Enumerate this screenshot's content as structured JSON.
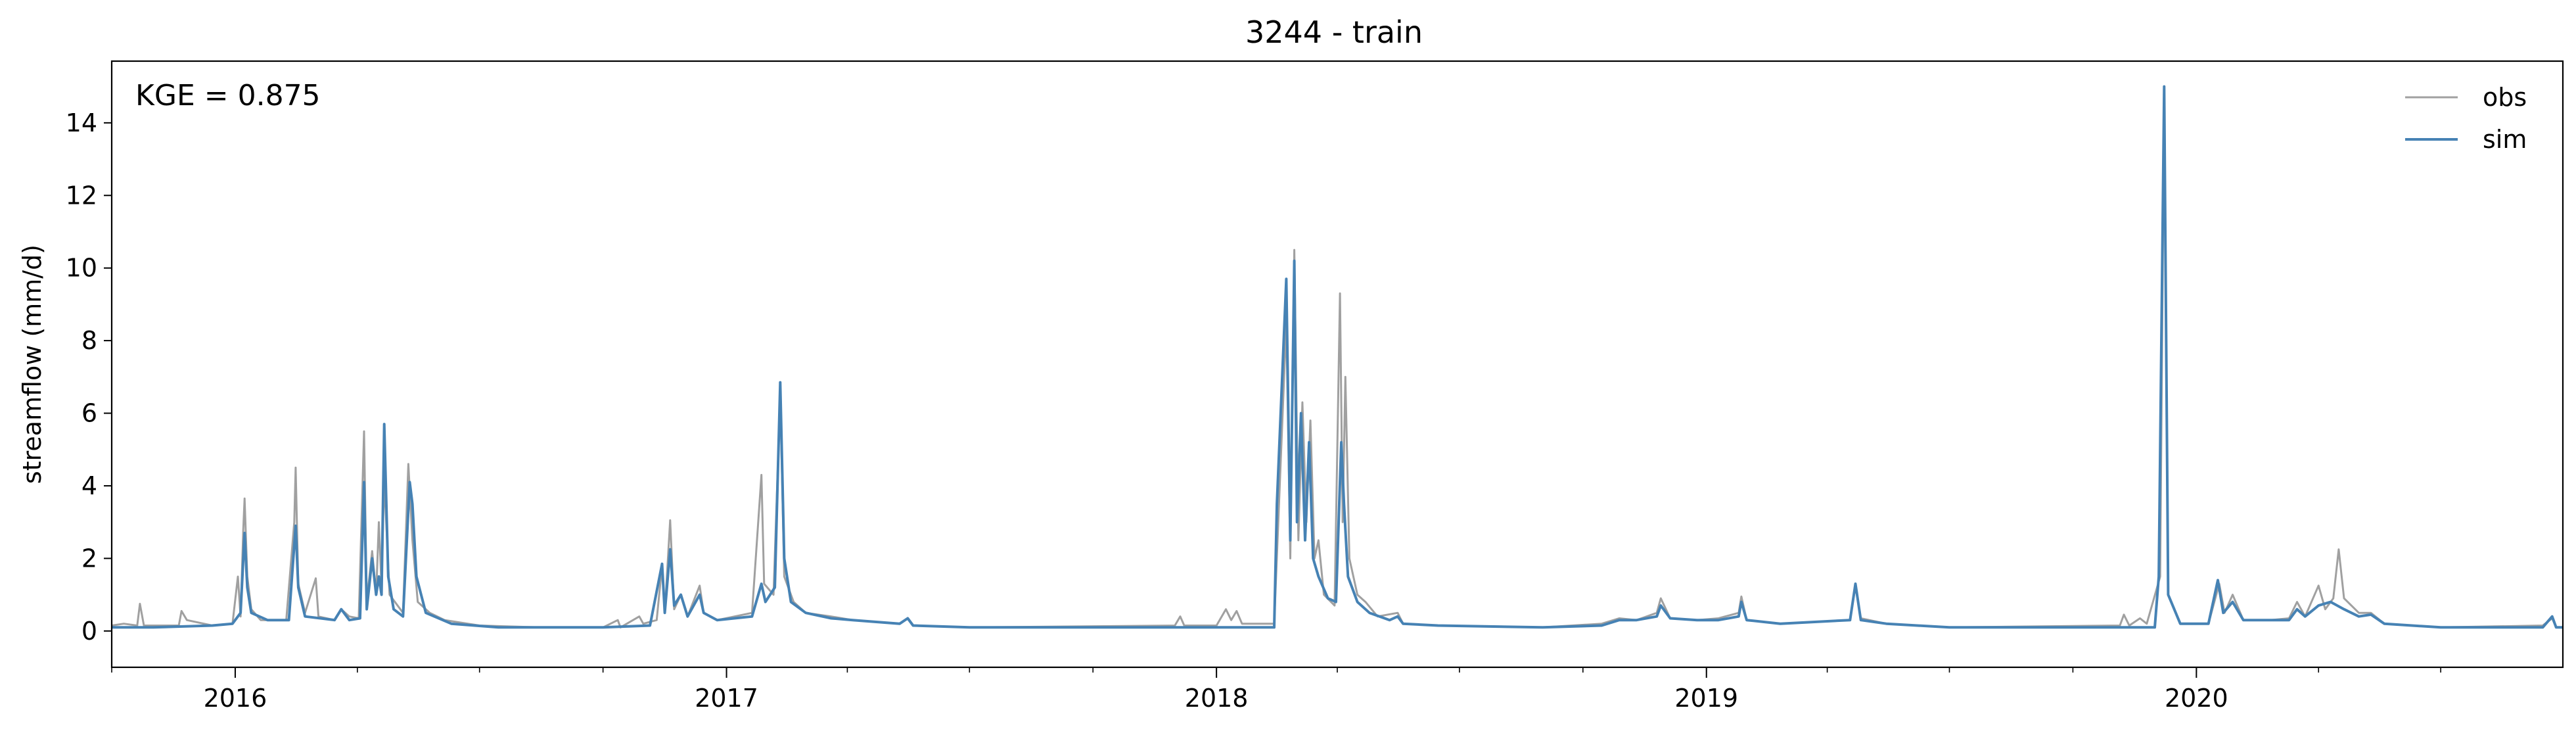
{
  "chart_data": {
    "type": "line",
    "title": "3244 - train",
    "xlabel": "",
    "ylabel": "streamflow (mm/d)",
    "annotation": "KGE = 0.875",
    "xlim": [
      "2015-10-01",
      "2020-09-30"
    ],
    "ylim": [
      -1,
      15.7
    ],
    "yticks": [
      0,
      2,
      4,
      6,
      8,
      10,
      12,
      14
    ],
    "xticks": [
      "2016-01-01",
      "2017-01-01",
      "2018-01-01",
      "2019-01-01",
      "2020-01-01"
    ],
    "xticklabels": [
      "2016",
      "2017",
      "2018",
      "2019",
      "2020"
    ],
    "grid": false,
    "legend_position": "upper-right",
    "series": [
      {
        "name": "obs",
        "color": "#a0a0a0",
        "points": [
          [
            "2015-10-01",
            0.15
          ],
          [
            "2015-10-10",
            0.2
          ],
          [
            "2015-10-20",
            0.15
          ],
          [
            "2015-10-22",
            0.75
          ],
          [
            "2015-10-25",
            0.15
          ],
          [
            "2015-11-20",
            0.15
          ],
          [
            "2015-11-22",
            0.55
          ],
          [
            "2015-11-26",
            0.3
          ],
          [
            "2015-12-15",
            0.15
          ],
          [
            "2015-12-30",
            0.2
          ],
          [
            "2016-01-03",
            1.5
          ],
          [
            "2016-01-05",
            0.4
          ],
          [
            "2016-01-07",
            2.8
          ],
          [
            "2016-01-08",
            3.65
          ],
          [
            "2016-01-10",
            1.5
          ],
          [
            "2016-01-13",
            0.6
          ],
          [
            "2016-01-20",
            0.3
          ],
          [
            "2016-02-08",
            0.3
          ],
          [
            "2016-02-14",
            3.0
          ],
          [
            "2016-02-15",
            4.5
          ],
          [
            "2016-02-17",
            1.3
          ],
          [
            "2016-02-22",
            0.5
          ],
          [
            "2016-03-01",
            1.45
          ],
          [
            "2016-03-03",
            0.4
          ],
          [
            "2016-03-15",
            0.3
          ],
          [
            "2016-03-20",
            0.6
          ],
          [
            "2016-03-26",
            0.4
          ],
          [
            "2016-04-02",
            0.35
          ],
          [
            "2016-04-06",
            5.5
          ],
          [
            "2016-04-08",
            0.8
          ],
          [
            "2016-04-12",
            2.2
          ],
          [
            "2016-04-15",
            1.0
          ],
          [
            "2016-04-17",
            3.0
          ],
          [
            "2016-04-19",
            1.2
          ],
          [
            "2016-04-21",
            4.2
          ],
          [
            "2016-04-25",
            1.0
          ],
          [
            "2016-05-05",
            0.5
          ],
          [
            "2016-05-09",
            4.6
          ],
          [
            "2016-05-12",
            2.5
          ],
          [
            "2016-05-16",
            0.8
          ],
          [
            "2016-05-25",
            0.5
          ],
          [
            "2016-06-05",
            0.3
          ],
          [
            "2016-07-01",
            0.15
          ],
          [
            "2016-08-15",
            0.1
          ],
          [
            "2016-10-01",
            0.1
          ],
          [
            "2016-10-12",
            0.3
          ],
          [
            "2016-10-14",
            0.1
          ],
          [
            "2016-10-28",
            0.4
          ],
          [
            "2016-10-31",
            0.2
          ],
          [
            "2016-11-10",
            0.3
          ],
          [
            "2016-11-14",
            1.8
          ],
          [
            "2016-11-16",
            0.5
          ],
          [
            "2016-11-20",
            3.05
          ],
          [
            "2016-11-23",
            0.6
          ],
          [
            "2016-11-28",
            1.0
          ],
          [
            "2016-12-03",
            0.4
          ],
          [
            "2016-12-12",
            1.25
          ],
          [
            "2016-12-15",
            0.5
          ],
          [
            "2016-12-25",
            0.3
          ],
          [
            "2017-01-20",
            0.5
          ],
          [
            "2017-01-27",
            4.3
          ],
          [
            "2017-01-29",
            1.3
          ],
          [
            "2017-02-05",
            1.0
          ],
          [
            "2017-02-10",
            6.5
          ],
          [
            "2017-02-13",
            1.5
          ],
          [
            "2017-02-20",
            0.8
          ],
          [
            "2017-03-01",
            0.5
          ],
          [
            "2017-03-20",
            0.4
          ],
          [
            "2017-04-05",
            0.3
          ],
          [
            "2017-05-10",
            0.2
          ],
          [
            "2017-05-16",
            0.35
          ],
          [
            "2017-05-20",
            0.15
          ],
          [
            "2017-07-01",
            0.1
          ],
          [
            "2017-12-01",
            0.15
          ],
          [
            "2017-12-05",
            0.4
          ],
          [
            "2017-12-08",
            0.15
          ],
          [
            "2018-01-01",
            0.15
          ],
          [
            "2018-01-08",
            0.6
          ],
          [
            "2018-01-12",
            0.3
          ],
          [
            "2018-01-16",
            0.55
          ],
          [
            "2018-01-20",
            0.2
          ],
          [
            "2018-02-13",
            0.2
          ],
          [
            "2018-02-22",
            8.5
          ],
          [
            "2018-02-25",
            2.0
          ],
          [
            "2018-02-28",
            10.5
          ],
          [
            "2018-03-03",
            2.5
          ],
          [
            "2018-03-06",
            6.3
          ],
          [
            "2018-03-09",
            3.0
          ],
          [
            "2018-03-12",
            5.8
          ],
          [
            "2018-03-15",
            2.0
          ],
          [
            "2018-03-18",
            2.5
          ],
          [
            "2018-03-22",
            1.0
          ],
          [
            "2018-03-30",
            0.7
          ],
          [
            "2018-04-03",
            9.3
          ],
          [
            "2018-04-05",
            3.0
          ],
          [
            "2018-04-07",
            7.0
          ],
          [
            "2018-04-10",
            2.0
          ],
          [
            "2018-04-16",
            1.0
          ],
          [
            "2018-04-22",
            0.8
          ],
          [
            "2018-05-01",
            0.4
          ],
          [
            "2018-05-16",
            0.5
          ],
          [
            "2018-05-20",
            0.2
          ],
          [
            "2018-06-15",
            0.15
          ],
          [
            "2018-09-01",
            0.1
          ],
          [
            "2018-10-15",
            0.2
          ],
          [
            "2018-10-28",
            0.35
          ],
          [
            "2018-11-10",
            0.3
          ],
          [
            "2018-11-25",
            0.5
          ],
          [
            "2018-11-28",
            0.9
          ],
          [
            "2018-12-05",
            0.35
          ],
          [
            "2018-12-25",
            0.3
          ],
          [
            "2019-01-10",
            0.35
          ],
          [
            "2019-01-25",
            0.5
          ],
          [
            "2019-01-27",
            0.95
          ],
          [
            "2019-01-31",
            0.3
          ],
          [
            "2019-02-25",
            0.2
          ],
          [
            "2019-04-18",
            0.3
          ],
          [
            "2019-04-22",
            1.25
          ],
          [
            "2019-04-26",
            0.35
          ],
          [
            "2019-05-15",
            0.2
          ],
          [
            "2019-07-01",
            0.1
          ],
          [
            "2019-11-05",
            0.15
          ],
          [
            "2019-11-08",
            0.45
          ],
          [
            "2019-11-12",
            0.15
          ],
          [
            "2019-11-20",
            0.35
          ],
          [
            "2019-11-25",
            0.2
          ],
          [
            "2019-12-05",
            1.5
          ],
          [
            "2019-12-08",
            14.9
          ],
          [
            "2019-12-11",
            1.0
          ],
          [
            "2019-12-20",
            0.2
          ],
          [
            "2020-01-10",
            0.2
          ],
          [
            "2020-01-18",
            1.3
          ],
          [
            "2020-01-22",
            0.5
          ],
          [
            "2020-01-28",
            1.0
          ],
          [
            "2020-02-05",
            0.3
          ],
          [
            "2020-02-25",
            0.3
          ],
          [
            "2020-03-10",
            0.35
          ],
          [
            "2020-03-16",
            0.8
          ],
          [
            "2020-03-22",
            0.4
          ],
          [
            "2020-04-01",
            1.25
          ],
          [
            "2020-04-06",
            0.6
          ],
          [
            "2020-04-12",
            0.9
          ],
          [
            "2020-04-16",
            2.25
          ],
          [
            "2020-04-20",
            0.9
          ],
          [
            "2020-05-01",
            0.5
          ],
          [
            "2020-05-10",
            0.5
          ],
          [
            "2020-05-20",
            0.2
          ],
          [
            "2020-07-01",
            0.1
          ],
          [
            "2020-09-15",
            0.15
          ],
          [
            "2020-09-22",
            0.35
          ],
          [
            "2020-09-25",
            0.1
          ],
          [
            "2020-09-30",
            0.1
          ]
        ]
      },
      {
        "name": "sim",
        "color": "#4682b4",
        "points": [
          [
            "2015-10-01",
            0.1
          ],
          [
            "2015-11-01",
            0.1
          ],
          [
            "2015-12-15",
            0.15
          ],
          [
            "2015-12-30",
            0.2
          ],
          [
            "2016-01-05",
            0.5
          ],
          [
            "2016-01-08",
            2.7
          ],
          [
            "2016-01-10",
            1.2
          ],
          [
            "2016-01-13",
            0.5
          ],
          [
            "2016-01-25",
            0.3
          ],
          [
            "2016-02-10",
            0.3
          ],
          [
            "2016-02-15",
            2.9
          ],
          [
            "2016-02-17",
            1.2
          ],
          [
            "2016-02-22",
            0.4
          ],
          [
            "2016-03-15",
            0.3
          ],
          [
            "2016-03-20",
            0.6
          ],
          [
            "2016-03-26",
            0.3
          ],
          [
            "2016-04-03",
            0.35
          ],
          [
            "2016-04-06",
            4.1
          ],
          [
            "2016-04-08",
            0.6
          ],
          [
            "2016-04-12",
            2.0
          ],
          [
            "2016-04-15",
            1.0
          ],
          [
            "2016-04-17",
            1.5
          ],
          [
            "2016-04-19",
            1.0
          ],
          [
            "2016-04-21",
            5.7
          ],
          [
            "2016-04-24",
            1.5
          ],
          [
            "2016-04-28",
            0.6
          ],
          [
            "2016-05-05",
            0.4
          ],
          [
            "2016-05-10",
            4.1
          ],
          [
            "2016-05-12",
            3.5
          ],
          [
            "2016-05-15",
            1.5
          ],
          [
            "2016-05-22",
            0.5
          ],
          [
            "2016-06-10",
            0.2
          ],
          [
            "2016-07-15",
            0.1
          ],
          [
            "2016-10-01",
            0.1
          ],
          [
            "2016-11-05",
            0.15
          ],
          [
            "2016-11-14",
            1.85
          ],
          [
            "2016-11-16",
            0.5
          ],
          [
            "2016-11-20",
            2.25
          ],
          [
            "2016-11-23",
            0.7
          ],
          [
            "2016-11-28",
            1.0
          ],
          [
            "2016-12-03",
            0.4
          ],
          [
            "2016-12-12",
            1.0
          ],
          [
            "2016-12-15",
            0.5
          ],
          [
            "2016-12-25",
            0.3
          ],
          [
            "2017-01-20",
            0.4
          ],
          [
            "2017-01-27",
            1.3
          ],
          [
            "2017-01-30",
            0.8
          ],
          [
            "2017-02-06",
            1.2
          ],
          [
            "2017-02-10",
            6.85
          ],
          [
            "2017-02-13",
            2.0
          ],
          [
            "2017-02-18",
            0.8
          ],
          [
            "2017-03-01",
            0.5
          ],
          [
            "2017-03-20",
            0.35
          ],
          [
            "2017-04-05",
            0.3
          ],
          [
            "2017-05-10",
            0.2
          ],
          [
            "2017-05-16",
            0.35
          ],
          [
            "2017-05-20",
            0.15
          ],
          [
            "2017-07-01",
            0.1
          ],
          [
            "2018-02-13",
            0.1
          ],
          [
            "2018-02-15",
            3.5
          ],
          [
            "2018-02-22",
            9.7
          ],
          [
            "2018-02-25",
            2.5
          ],
          [
            "2018-02-28",
            10.2
          ],
          [
            "2018-03-02",
            3.0
          ],
          [
            "2018-03-05",
            6.0
          ],
          [
            "2018-03-08",
            2.5
          ],
          [
            "2018-03-11",
            5.2
          ],
          [
            "2018-03-14",
            2.0
          ],
          [
            "2018-03-18",
            1.5
          ],
          [
            "2018-03-25",
            0.9
          ],
          [
            "2018-03-31",
            0.8
          ],
          [
            "2018-04-04",
            5.2
          ],
          [
            "2018-04-06",
            3.5
          ],
          [
            "2018-04-09",
            1.5
          ],
          [
            "2018-04-16",
            0.8
          ],
          [
            "2018-04-25",
            0.5
          ],
          [
            "2018-05-10",
            0.3
          ],
          [
            "2018-05-16",
            0.4
          ],
          [
            "2018-05-20",
            0.2
          ],
          [
            "2018-06-15",
            0.15
          ],
          [
            "2018-09-01",
            0.1
          ],
          [
            "2018-10-15",
            0.15
          ],
          [
            "2018-10-28",
            0.3
          ],
          [
            "2018-11-10",
            0.3
          ],
          [
            "2018-11-25",
            0.4
          ],
          [
            "2018-11-28",
            0.7
          ],
          [
            "2018-12-05",
            0.35
          ],
          [
            "2018-12-25",
            0.3
          ],
          [
            "2019-01-10",
            0.3
          ],
          [
            "2019-01-25",
            0.4
          ],
          [
            "2019-01-27",
            0.8
          ],
          [
            "2019-01-31",
            0.3
          ],
          [
            "2019-02-25",
            0.2
          ],
          [
            "2019-04-18",
            0.3
          ],
          [
            "2019-04-22",
            1.3
          ],
          [
            "2019-04-26",
            0.3
          ],
          [
            "2019-05-15",
            0.2
          ],
          [
            "2019-07-01",
            0.1
          ],
          [
            "2019-12-01",
            0.1
          ],
          [
            "2019-12-04",
            1.5
          ],
          [
            "2019-12-08",
            15.0
          ],
          [
            "2019-12-11",
            1.0
          ],
          [
            "2019-12-20",
            0.2
          ],
          [
            "2020-01-10",
            0.2
          ],
          [
            "2020-01-17",
            1.4
          ],
          [
            "2020-01-21",
            0.5
          ],
          [
            "2020-01-28",
            0.8
          ],
          [
            "2020-02-05",
            0.3
          ],
          [
            "2020-02-25",
            0.3
          ],
          [
            "2020-03-10",
            0.3
          ],
          [
            "2020-03-16",
            0.6
          ],
          [
            "2020-03-22",
            0.4
          ],
          [
            "2020-04-01",
            0.7
          ],
          [
            "2020-04-10",
            0.8
          ],
          [
            "2020-04-20",
            0.6
          ],
          [
            "2020-05-01",
            0.4
          ],
          [
            "2020-05-10",
            0.45
          ],
          [
            "2020-05-20",
            0.2
          ],
          [
            "2020-07-01",
            0.1
          ],
          [
            "2020-09-15",
            0.1
          ],
          [
            "2020-09-22",
            0.4
          ],
          [
            "2020-09-25",
            0.1
          ],
          [
            "2020-09-30",
            0.1
          ]
        ]
      }
    ]
  }
}
